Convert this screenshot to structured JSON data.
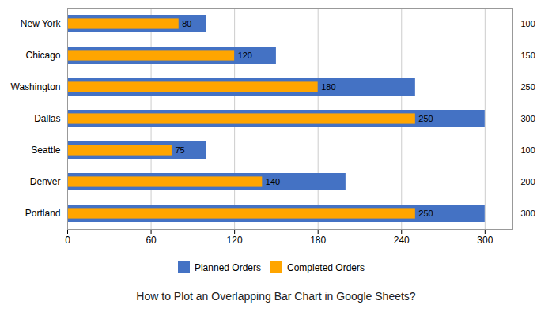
{
  "chart_data": {
    "type": "bar",
    "orientation": "horizontal",
    "title": "How to Plot an Overlapping Bar Chart in Google Sheets?",
    "categories": [
      "New York",
      "Chicago",
      "Washington",
      "Dallas",
      "Seattle",
      "Denver",
      "Portland"
    ],
    "series": [
      {
        "name": "Planned Orders",
        "color": "#4472C4",
        "values": [
          100,
          150,
          250,
          300,
          100,
          200,
          300
        ]
      },
      {
        "name": "Completed Orders",
        "color": "#FFA500",
        "values": [
          80,
          120,
          180,
          250,
          75,
          140,
          250
        ]
      }
    ],
    "xlim": [
      0,
      320
    ],
    "xticks": [
      0,
      60,
      120,
      180,
      240,
      300
    ],
    "grid": true,
    "data_labels": true,
    "legend": "bottom"
  }
}
